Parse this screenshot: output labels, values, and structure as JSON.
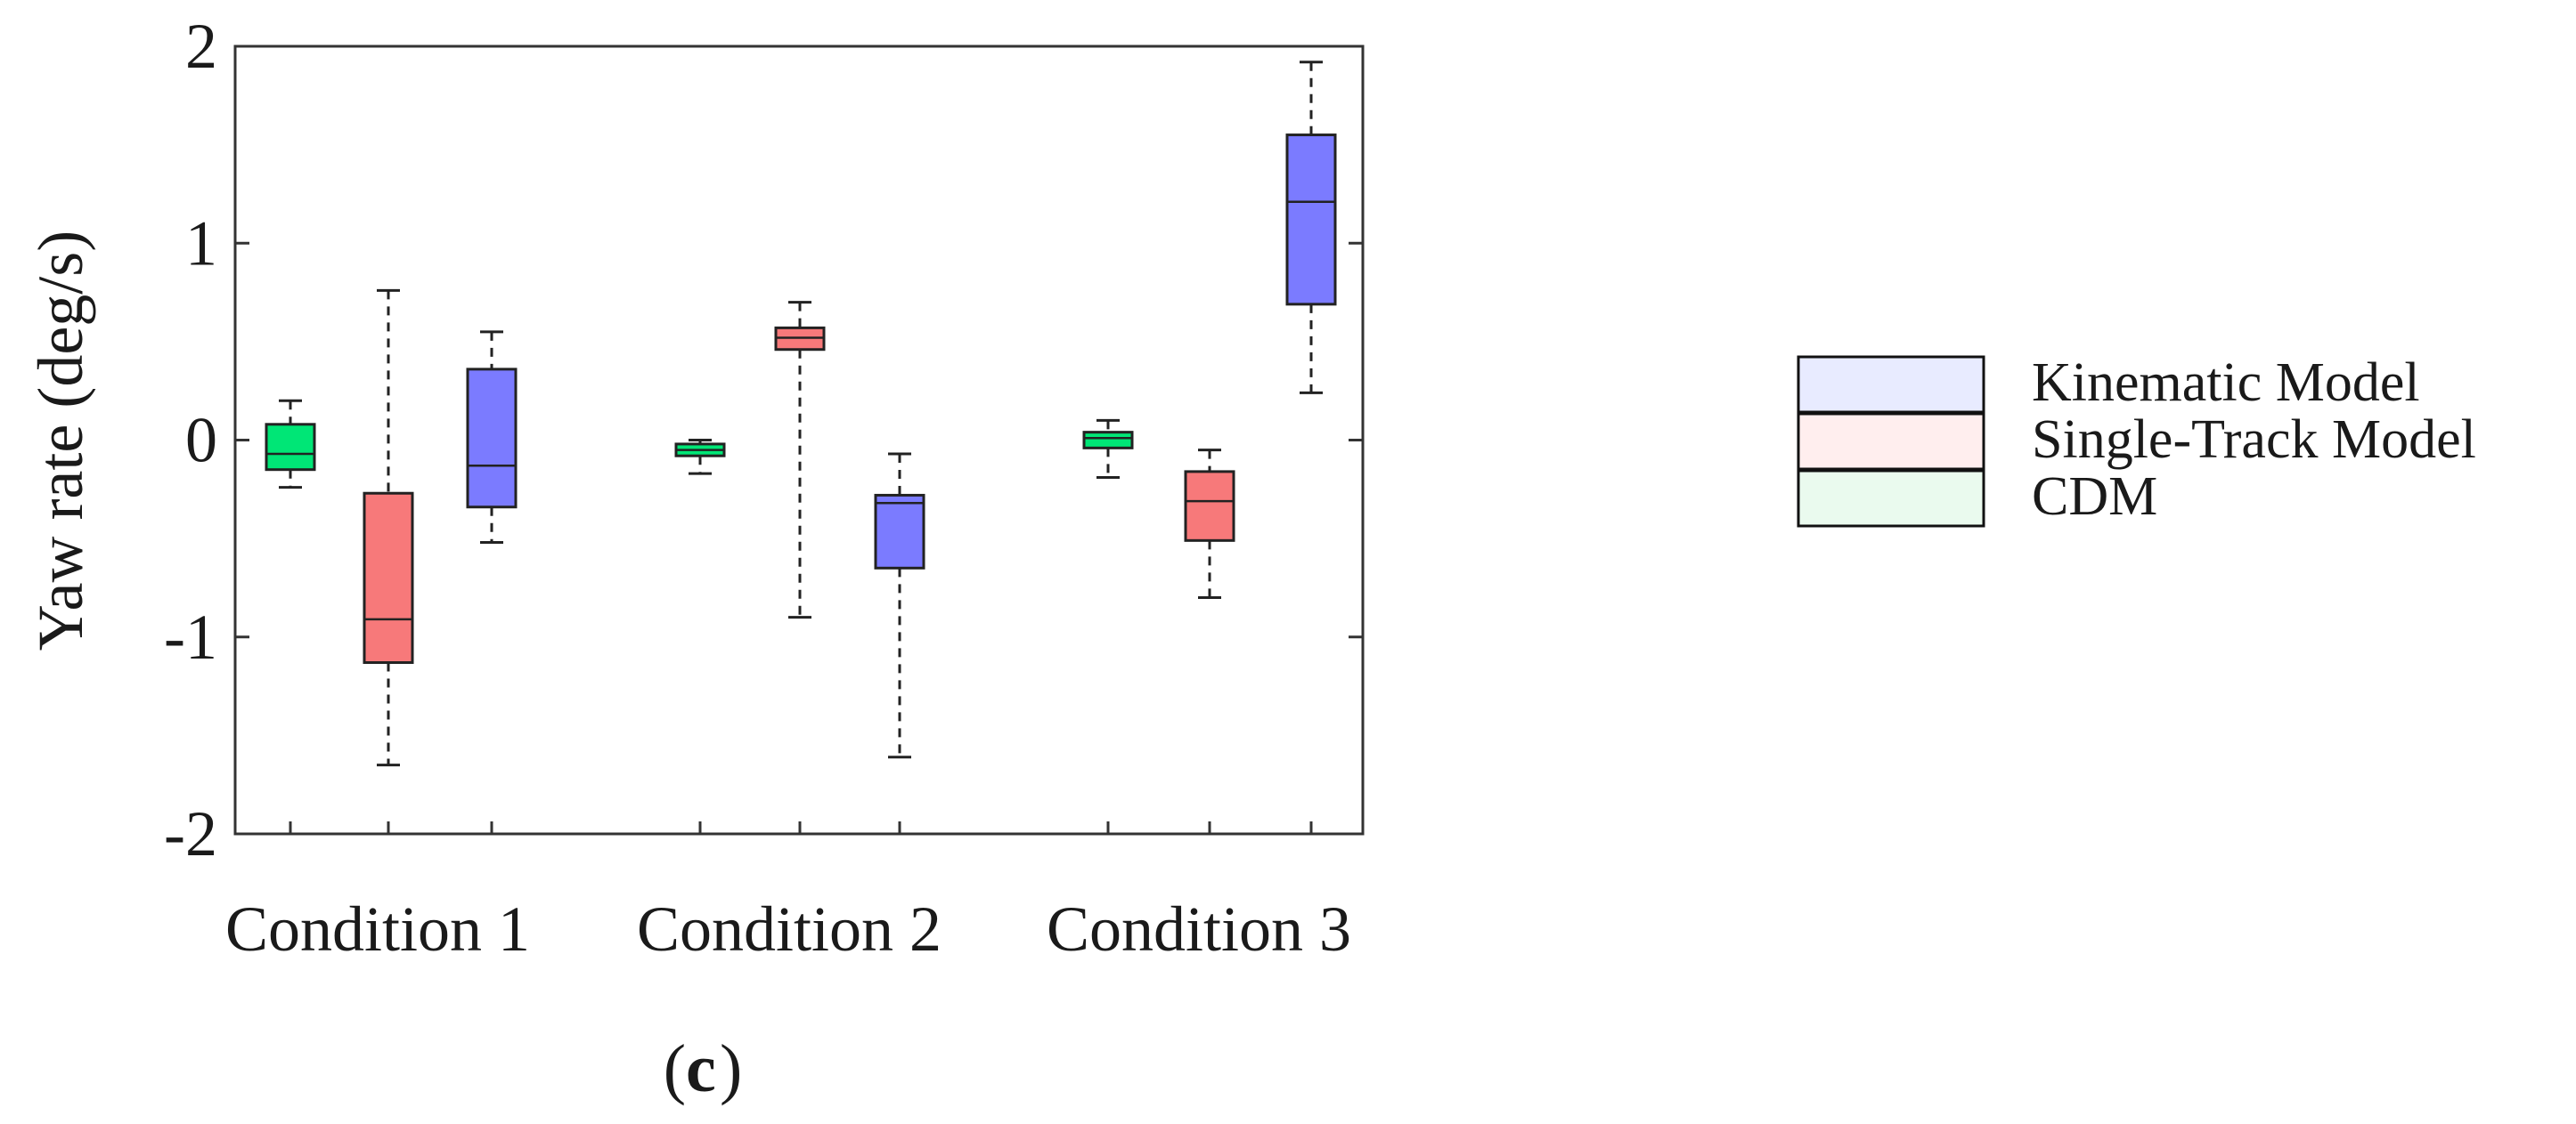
{
  "chart_data": {
    "type": "boxplot",
    "title": "",
    "xlabel": "",
    "ylabel": "Yaw rate (deg/s)",
    "ylim": [
      -2,
      2
    ],
    "yticks": [
      -2,
      -1,
      0,
      1,
      2
    ],
    "grid": false,
    "legend_position": "right",
    "categories": [
      "Condition 1",
      "Condition 2",
      "Condition 3"
    ],
    "series": [
      {
        "name": "CDM",
        "color": "#00e676",
        "boxes": [
          {
            "whisker_low": -0.24,
            "q1": -0.15,
            "median": -0.07,
            "q3": 0.08,
            "whisker_high": 0.2
          },
          {
            "whisker_low": -0.17,
            "q1": -0.08,
            "median": -0.05,
            "q3": -0.02,
            "whisker_high": 0.0
          },
          {
            "whisker_low": -0.19,
            "q1": -0.04,
            "median": 0.01,
            "q3": 0.04,
            "whisker_high": 0.1
          }
        ]
      },
      {
        "name": "Single-Track Model",
        "color": "#f7797a",
        "boxes": [
          {
            "whisker_low": -1.65,
            "q1": -1.13,
            "median": -0.91,
            "q3": -0.27,
            "whisker_high": 0.76
          },
          {
            "whisker_low": -0.9,
            "q1": 0.46,
            "median": 0.52,
            "q3": 0.57,
            "whisker_high": 0.7
          },
          {
            "whisker_low": -0.8,
            "q1": -0.51,
            "median": -0.31,
            "q3": -0.16,
            "whisker_high": -0.05
          }
        ]
      },
      {
        "name": "Kinematic Model",
        "color": "#7b7bff",
        "boxes": [
          {
            "whisker_low": -0.52,
            "q1": -0.34,
            "median": -0.13,
            "q3": 0.36,
            "whisker_high": 0.55
          },
          {
            "whisker_low": -1.61,
            "q1": -0.65,
            "median": -0.32,
            "q3": -0.28,
            "whisker_high": -0.07
          },
          {
            "whisker_low": 0.24,
            "q1": 0.69,
            "median": 1.21,
            "q3": 1.55,
            "whisker_high": 1.92
          }
        ]
      }
    ],
    "legend": [
      "Kinematic Model",
      "Single-Track Model",
      "CDM"
    ]
  },
  "panel_label": "c"
}
